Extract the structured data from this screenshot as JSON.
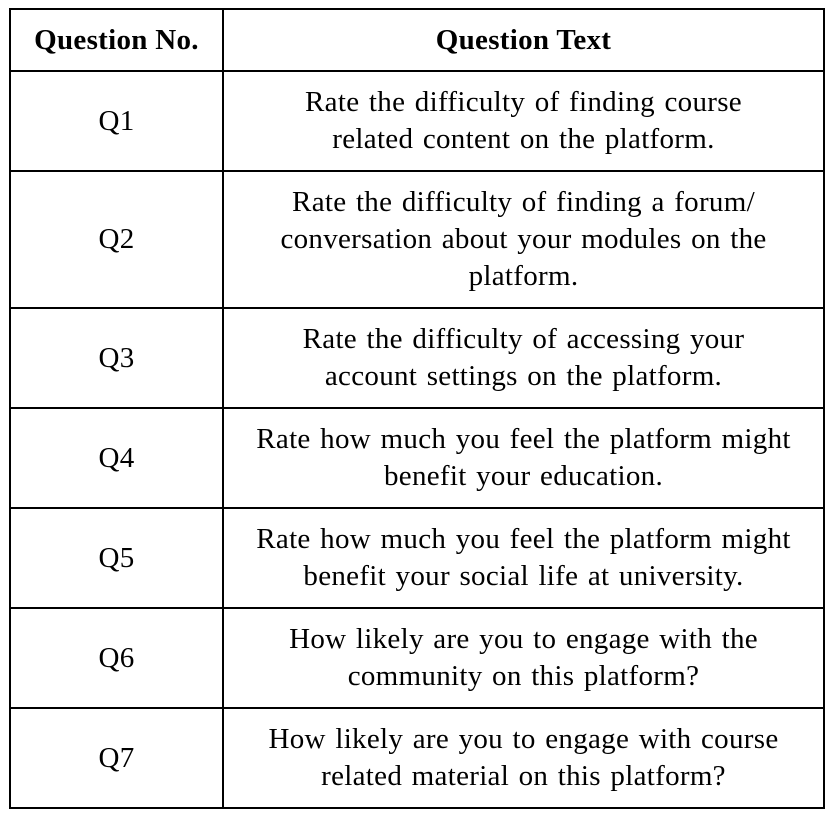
{
  "table": {
    "headers": [
      "Question No.",
      "Question Text"
    ],
    "rows": [
      {
        "number": "Q1",
        "text": "Rate the difficulty of finding course related content on the platform."
      },
      {
        "number": "Q2",
        "text": "Rate the difficulty of finding a forum/ conversation about your modules on the platform."
      },
      {
        "number": "Q3",
        "text": "Rate the difficulty of accessing your account settings on the platform."
      },
      {
        "number": "Q4",
        "text": "Rate how much you feel the platform might benefit your education."
      },
      {
        "number": "Q5",
        "text": "Rate how much you feel the platform might benefit your social life at university."
      },
      {
        "number": "Q6",
        "text": "How likely are you to engage with the community on this platform?"
      },
      {
        "number": "Q7",
        "text": "How likely are you to engage with course related material on this platform?"
      }
    ]
  }
}
